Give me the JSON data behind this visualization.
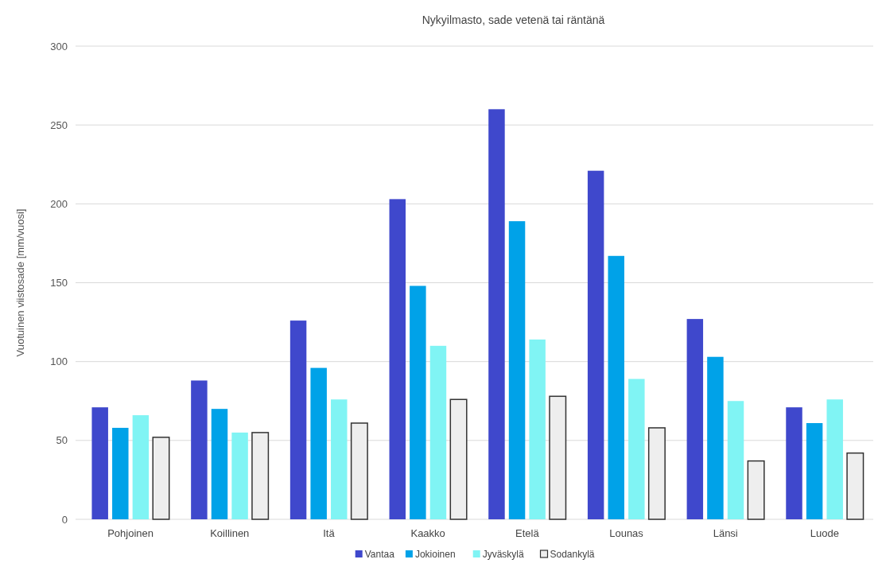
{
  "chart_data": {
    "type": "bar",
    "title": "Nykyilmasto, sade vetenä tai räntänä",
    "ylabel": "Vuotuinen viistosade [mm/vuosi]",
    "categories": [
      "Pohjoinen",
      "Koillinen",
      "Itä",
      "Kaakko",
      "Etelä",
      "Lounas",
      "Länsi",
      "Luode"
    ],
    "series": [
      {
        "name": "Vantaa",
        "color": "#3f48cc",
        "values": [
          71,
          88,
          126,
          203,
          260,
          221,
          127,
          71
        ]
      },
      {
        "name": "Jokioinen",
        "color": "#00a2e8",
        "values": [
          58,
          70,
          96,
          148,
          189,
          167,
          103,
          61
        ]
      },
      {
        "name": "Jyväskylä",
        "color": "#80f4f4",
        "values": [
          66,
          55,
          76,
          110,
          114,
          89,
          75,
          76
        ]
      },
      {
        "name": "Sodankylä",
        "color": "#eeeeee",
        "values": [
          52,
          55,
          61,
          76,
          78,
          58,
          37,
          42
        ]
      }
    ],
    "ylim": [
      0,
      300
    ],
    "yticks": [
      0,
      50,
      100,
      150,
      200,
      250,
      300
    ],
    "grid": "y",
    "legend": "bottom"
  }
}
